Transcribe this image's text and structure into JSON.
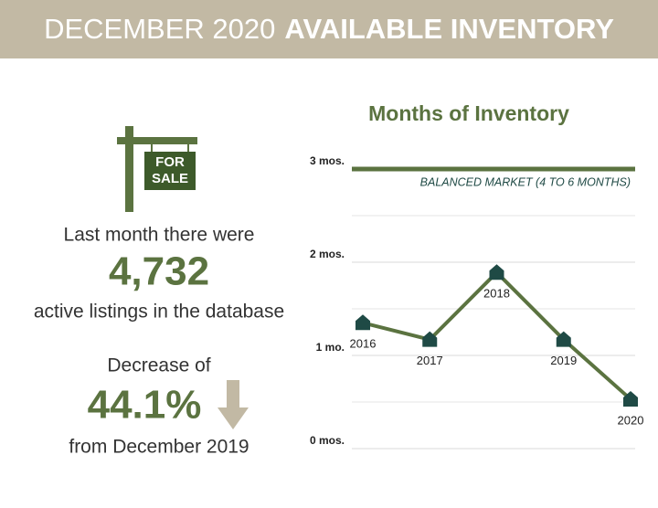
{
  "header": {
    "title_light": "DECEMBER 2020",
    "title_bold": "AVAILABLE INVENTORY"
  },
  "summary": {
    "sign_top": "FOR",
    "sign_bottom": "SALE",
    "intro": "Last month there were",
    "listings": "4,732",
    "listings_note": "active listings in the database",
    "change_intro": "Decrease of",
    "change": "44.1%",
    "change_note": "from December 2019"
  },
  "chart_data": {
    "type": "line",
    "title": "Months of Inventory",
    "categories": [
      "2016",
      "2017",
      "2018",
      "2019",
      "2020"
    ],
    "values": [
      1.35,
      1.17,
      1.89,
      1.17,
      0.53
    ],
    "color": "#5b7340",
    "marker_color": "#1f4a45",
    "ylim": [
      0,
      3
    ],
    "yticks": [
      {
        "value": 0,
        "label": "0 mos."
      },
      {
        "value": 1,
        "label": "1 mo."
      },
      {
        "value": 2,
        "label": "2 mos."
      },
      {
        "value": 3,
        "label": "3 mos."
      }
    ],
    "minor_yticks": [
      0.5,
      1.5,
      2.5
    ],
    "grid": true,
    "reference_line": {
      "value": 3,
      "label": "BALANCED MARKET (4 TO 6 MONTHS)",
      "color": "#5b7340"
    }
  }
}
